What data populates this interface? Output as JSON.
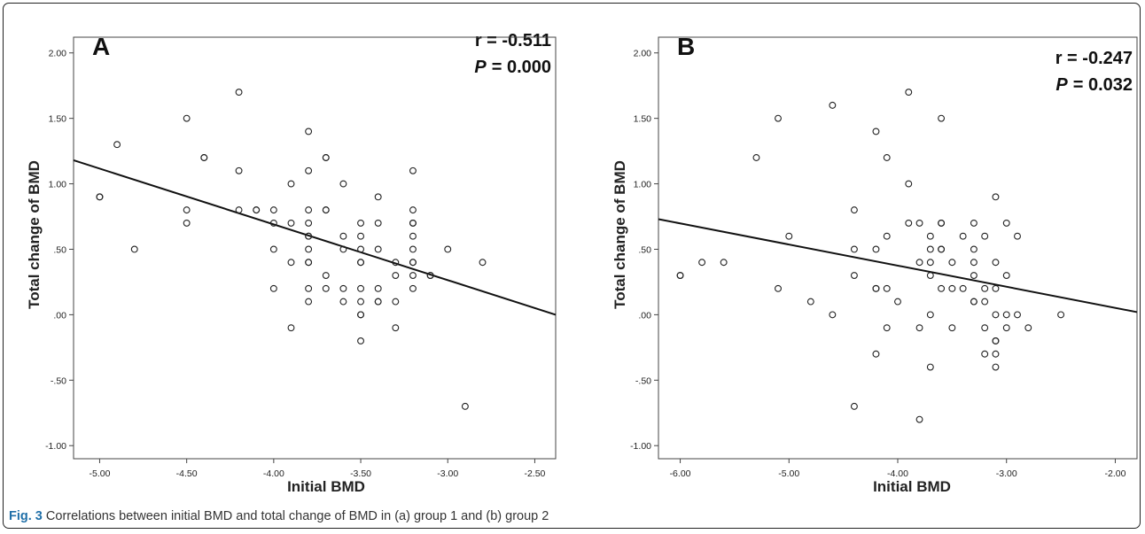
{
  "caption": {
    "fig": "Fig. 3",
    "text": "Correlations between initial BMD and total change of BMD in (a) group 1 and (b) group 2"
  },
  "chart_data": [
    {
      "type": "scatter",
      "panel_label": "A",
      "stat_r_label": "r = -0.511",
      "stat_p_prefix": "P",
      "stat_p_value": "= 0.000",
      "xlabel": "Initial BMD",
      "ylabel": "Total change of BMD",
      "xlim": [
        -5.15,
        -2.38
      ],
      "ylim": [
        -1.1,
        2.12
      ],
      "xticks": [
        -5.0,
        -4.5,
        -4.0,
        -3.5,
        -3.0,
        -2.5
      ],
      "xtick_labels": [
        "-5.00",
        "-4.50",
        "-4.00",
        "-3.50",
        "-3.00",
        "-2.50"
      ],
      "yticks": [
        -1.0,
        -0.5,
        0.0,
        0.5,
        1.0,
        1.5,
        2.0
      ],
      "ytick_labels": [
        "-1.00",
        "-.50",
        ".00",
        ".50",
        "1.00",
        "1.50",
        "2.00"
      ],
      "fit_line": {
        "x": [
          -5.15,
          -2.38
        ],
        "y": [
          1.18,
          0.0
        ]
      },
      "points": [
        [
          -5.0,
          0.9
        ],
        [
          -5.0,
          0.9
        ],
        [
          -4.9,
          1.3
        ],
        [
          -4.8,
          0.5
        ],
        [
          -4.5,
          1.5
        ],
        [
          -4.5,
          0.8
        ],
        [
          -4.5,
          0.7
        ],
        [
          -4.4,
          1.2
        ],
        [
          -4.4,
          1.2
        ],
        [
          -4.2,
          1.7
        ],
        [
          -4.2,
          1.1
        ],
        [
          -4.2,
          0.8
        ],
        [
          -4.1,
          0.8
        ],
        [
          -4.1,
          0.8
        ],
        [
          -4.0,
          0.8
        ],
        [
          -4.0,
          0.7
        ],
        [
          -4.0,
          0.5
        ],
        [
          -4.0,
          0.2
        ],
        [
          -3.9,
          1.0
        ],
        [
          -3.9,
          0.7
        ],
        [
          -3.9,
          0.4
        ],
        [
          -3.9,
          -0.1
        ],
        [
          -3.8,
          1.4
        ],
        [
          -3.8,
          1.1
        ],
        [
          -3.8,
          0.8
        ],
        [
          -3.8,
          0.7
        ],
        [
          -3.8,
          0.6
        ],
        [
          -3.8,
          0.6
        ],
        [
          -3.8,
          0.5
        ],
        [
          -3.8,
          0.4
        ],
        [
          -3.8,
          0.4
        ],
        [
          -3.8,
          0.2
        ],
        [
          -3.8,
          0.1
        ],
        [
          -3.7,
          1.2
        ],
        [
          -3.7,
          1.2
        ],
        [
          -3.7,
          0.8
        ],
        [
          -3.7,
          0.8
        ],
        [
          -3.7,
          0.3
        ],
        [
          -3.7,
          0.2
        ],
        [
          -3.6,
          1.0
        ],
        [
          -3.6,
          0.6
        ],
        [
          -3.6,
          0.5
        ],
        [
          -3.6,
          0.2
        ],
        [
          -3.6,
          0.1
        ],
        [
          -3.5,
          0.7
        ],
        [
          -3.5,
          0.6
        ],
        [
          -3.5,
          0.5
        ],
        [
          -3.5,
          0.4
        ],
        [
          -3.5,
          0.4
        ],
        [
          -3.5,
          0.2
        ],
        [
          -3.5,
          0.1
        ],
        [
          -3.5,
          0.0
        ],
        [
          -3.5,
          0.0
        ],
        [
          -3.5,
          -0.2
        ],
        [
          -3.4,
          0.9
        ],
        [
          -3.4,
          0.7
        ],
        [
          -3.4,
          0.5
        ],
        [
          -3.4,
          0.2
        ],
        [
          -3.4,
          0.1
        ],
        [
          -3.4,
          0.1
        ],
        [
          -3.3,
          0.4
        ],
        [
          -3.3,
          0.3
        ],
        [
          -3.3,
          0.1
        ],
        [
          -3.3,
          -0.1
        ],
        [
          -3.2,
          1.1
        ],
        [
          -3.2,
          0.8
        ],
        [
          -3.2,
          0.7
        ],
        [
          -3.2,
          0.7
        ],
        [
          -3.2,
          0.6
        ],
        [
          -3.2,
          0.5
        ],
        [
          -3.2,
          0.4
        ],
        [
          -3.2,
          0.4
        ],
        [
          -3.2,
          0.3
        ],
        [
          -3.2,
          0.2
        ],
        [
          -3.1,
          0.3
        ],
        [
          -3.1,
          0.3
        ],
        [
          -3.0,
          0.5
        ],
        [
          -2.9,
          -0.7
        ],
        [
          -2.8,
          0.4
        ]
      ]
    },
    {
      "type": "scatter",
      "panel_label": "B",
      "stat_r_label": "r = -0.247",
      "stat_p_prefix": "P",
      "stat_p_value": "= 0.032",
      "xlabel": "Initial BMD",
      "ylabel": "Total change of BMD",
      "xlim": [
        -6.2,
        -1.8
      ],
      "ylim": [
        -1.1,
        2.12
      ],
      "xticks": [
        -6.0,
        -5.0,
        -4.0,
        -3.0,
        -2.0
      ],
      "xtick_labels": [
        "-6.00",
        "-5.00",
        "-4.00",
        "-3.00",
        "-2.00"
      ],
      "yticks": [
        -1.0,
        -0.5,
        0.0,
        0.5,
        1.0,
        1.5,
        2.0
      ],
      "ytick_labels": [
        "-1.00",
        "-.50",
        ".00",
        ".50",
        "1.00",
        "1.50",
        "2.00"
      ],
      "fit_line": {
        "x": [
          -6.2,
          -1.8
        ],
        "y": [
          0.73,
          0.02
        ]
      },
      "points": [
        [
          -6.0,
          0.3
        ],
        [
          -6.0,
          0.3
        ],
        [
          -5.8,
          0.4
        ],
        [
          -5.6,
          0.4
        ],
        [
          -5.3,
          1.2
        ],
        [
          -5.1,
          1.5
        ],
        [
          -5.1,
          0.2
        ],
        [
          -5.0,
          0.6
        ],
        [
          -4.8,
          0.1
        ],
        [
          -4.6,
          1.6
        ],
        [
          -4.6,
          0.0
        ],
        [
          -4.4,
          0.8
        ],
        [
          -4.4,
          0.5
        ],
        [
          -4.4,
          0.3
        ],
        [
          -4.4,
          -0.7
        ],
        [
          -4.2,
          1.4
        ],
        [
          -4.2,
          0.5
        ],
        [
          -4.2,
          0.2
        ],
        [
          -4.2,
          0.2
        ],
        [
          -4.2,
          -0.3
        ],
        [
          -4.1,
          1.2
        ],
        [
          -4.1,
          0.6
        ],
        [
          -4.1,
          0.2
        ],
        [
          -4.1,
          -0.1
        ],
        [
          -4.0,
          0.1
        ],
        [
          -3.9,
          1.7
        ],
        [
          -3.9,
          1.0
        ],
        [
          -3.9,
          0.7
        ],
        [
          -3.8,
          0.7
        ],
        [
          -3.8,
          0.4
        ],
        [
          -3.8,
          -0.1
        ],
        [
          -3.8,
          -0.8
        ],
        [
          -3.7,
          0.6
        ],
        [
          -3.7,
          0.5
        ],
        [
          -3.7,
          0.4
        ],
        [
          -3.7,
          0.3
        ],
        [
          -3.7,
          0.0
        ],
        [
          -3.7,
          -0.4
        ],
        [
          -3.6,
          1.5
        ],
        [
          -3.6,
          0.7
        ],
        [
          -3.6,
          0.7
        ],
        [
          -3.6,
          0.5
        ],
        [
          -3.6,
          0.5
        ],
        [
          -3.6,
          0.2
        ],
        [
          -3.5,
          0.4
        ],
        [
          -3.5,
          0.2
        ],
        [
          -3.5,
          -0.1
        ],
        [
          -3.4,
          0.6
        ],
        [
          -3.4,
          0.2
        ],
        [
          -3.3,
          0.7
        ],
        [
          -3.3,
          0.5
        ],
        [
          -3.3,
          0.4
        ],
        [
          -3.3,
          0.3
        ],
        [
          -3.3,
          0.1
        ],
        [
          -3.3,
          0.1
        ],
        [
          -3.2,
          0.6
        ],
        [
          -3.2,
          0.2
        ],
        [
          -3.2,
          0.1
        ],
        [
          -3.2,
          -0.1
        ],
        [
          -3.2,
          -0.3
        ],
        [
          -3.1,
          0.9
        ],
        [
          -3.1,
          0.4
        ],
        [
          -3.1,
          0.2
        ],
        [
          -3.1,
          0.0
        ],
        [
          -3.1,
          -0.2
        ],
        [
          -3.1,
          -0.2
        ],
        [
          -3.1,
          -0.3
        ],
        [
          -3.1,
          -0.4
        ],
        [
          -3.0,
          0.7
        ],
        [
          -3.0,
          0.3
        ],
        [
          -3.0,
          0.0
        ],
        [
          -3.0,
          -0.1
        ],
        [
          -2.9,
          0.6
        ],
        [
          -2.9,
          0.0
        ],
        [
          -2.8,
          -0.1
        ],
        [
          -2.5,
          0.0
        ]
      ]
    }
  ]
}
